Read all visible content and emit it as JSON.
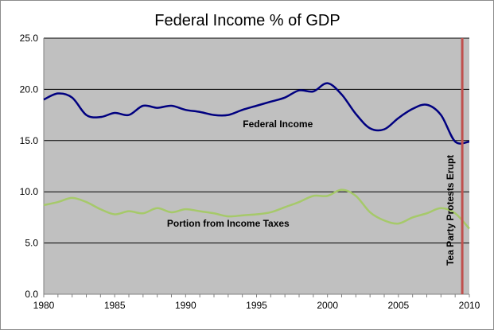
{
  "chart_data": {
    "type": "line",
    "title": "Federal Income % of GDP",
    "xlabel": "",
    "ylabel": "",
    "xlim": [
      1980,
      2010
    ],
    "ylim": [
      0,
      25
    ],
    "x_ticks": [
      "1980",
      "1985",
      "1990",
      "1995",
      "2000",
      "2005",
      "2010"
    ],
    "y_ticks": [
      "0.0",
      "5.0",
      "10.0",
      "15.0",
      "20.0",
      "25.0"
    ],
    "grid": "horizontal",
    "legend": "none",
    "plot_background": "#c0c0c0",
    "series": [
      {
        "name": "Federal Income",
        "color": "#000080",
        "x": [
          1980,
          1981,
          1982,
          1983,
          1984,
          1985,
          1986,
          1987,
          1988,
          1989,
          1990,
          1991,
          1992,
          1993,
          1994,
          1995,
          1996,
          1997,
          1998,
          1999,
          2000,
          2001,
          2002,
          2003,
          2004,
          2005,
          2006,
          2007,
          2008,
          2009,
          2010
        ],
        "values": [
          19.0,
          19.6,
          19.2,
          17.5,
          17.3,
          17.7,
          17.5,
          18.4,
          18.2,
          18.4,
          18.0,
          17.8,
          17.5,
          17.5,
          18.0,
          18.4,
          18.8,
          19.2,
          19.9,
          19.8,
          20.6,
          19.5,
          17.6,
          16.2,
          16.1,
          17.2,
          18.1,
          18.5,
          17.5,
          14.9,
          14.9
        ]
      },
      {
        "name": "Portion from Income Taxes",
        "color": "#a6c96a",
        "x": [
          1980,
          1981,
          1982,
          1983,
          1984,
          1985,
          1986,
          1987,
          1988,
          1989,
          1990,
          1991,
          1992,
          1993,
          1994,
          1995,
          1996,
          1997,
          1998,
          1999,
          2000,
          2001,
          2002,
          2003,
          2004,
          2005,
          2006,
          2007,
          2008,
          2009,
          2010
        ],
        "values": [
          8.7,
          9.0,
          9.4,
          9.0,
          8.3,
          7.8,
          8.1,
          7.9,
          8.4,
          8.0,
          8.3,
          8.1,
          7.9,
          7.6,
          7.7,
          7.8,
          8.0,
          8.5,
          9.0,
          9.6,
          9.6,
          10.2,
          9.6,
          8.0,
          7.2,
          6.9,
          7.5,
          7.9,
          8.4,
          7.9,
          6.4
        ]
      }
    ],
    "annotations": [
      {
        "text": "Federal Income",
        "x": 1996.5,
        "y": 16.3
      },
      {
        "text": "Portion from Income Taxes",
        "x": 1993.0,
        "y": 6.6
      }
    ],
    "marker": {
      "text": "Tea Party Protests Erupt",
      "x": 2009.5,
      "color": "#c0504d"
    }
  }
}
